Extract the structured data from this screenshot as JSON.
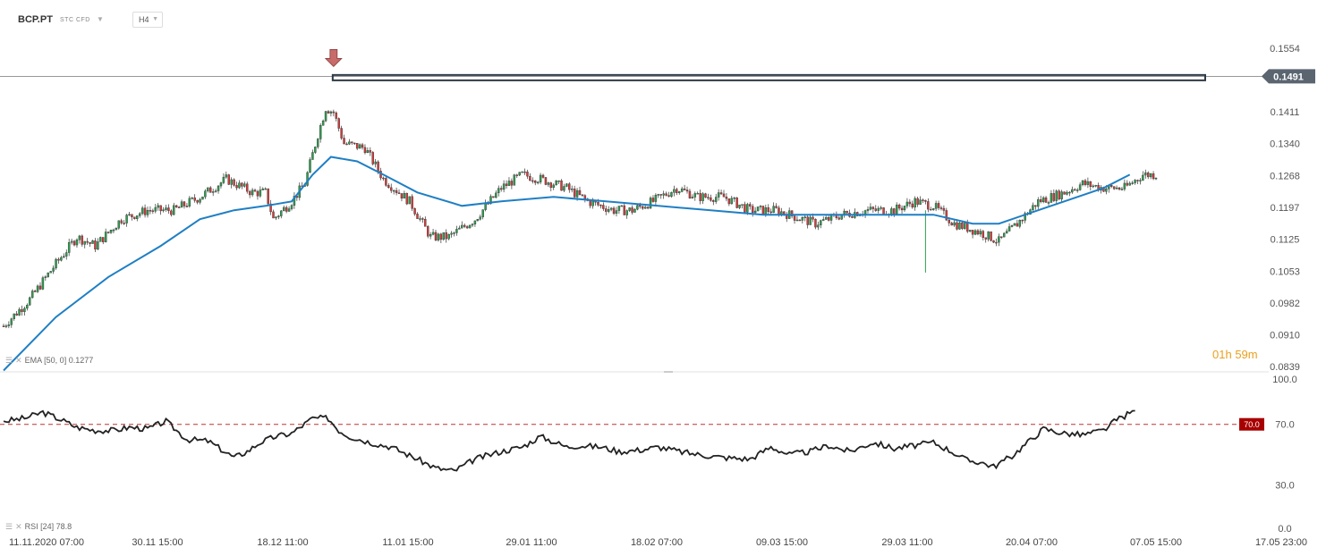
{
  "header": {
    "symbol": "BCP.PT",
    "instrument_type": "STC CFD",
    "timeframe": "H4"
  },
  "colors": {
    "up": "#2e9e4f",
    "down": "#d23b3b",
    "ema": "#1f7fc4",
    "rsi": "#222222",
    "level": "#2d3a45",
    "rsi_overbought": "#a80000",
    "countdown": "#e8a020",
    "marker": "#c86b6b"
  },
  "icons": {
    "indicator_settings": "lines-icon",
    "indicator_close": "close-x-icon",
    "top_marker": "down-arrow-icon",
    "symbol_dropdown": "chevron-down-icon"
  },
  "countdown": {
    "hours": "01h",
    "minutes": "59m"
  },
  "chart_data": [
    {
      "type": "candlestick",
      "title": "",
      "ylim": [
        0.0839,
        0.1554
      ],
      "y_ticks": [
        "0.1554",
        "0.1411",
        "0.1340",
        "0.1268",
        "0.1197",
        "0.1125",
        "0.1053",
        "0.0982",
        "0.0910",
        "0.0839"
      ],
      "current_price": "0.1491",
      "x_tick_labels": [
        "11.11.2020  07:00",
        "30.11  15:00",
        "18.12  11:00",
        "11.01  15:00",
        "29.01  11:00",
        "18.02  07:00",
        "09.03  15:00",
        "29.03  11:00",
        "20.04  07:00",
        "07.05  15:00",
        "17.05  23:00"
      ],
      "close_path": [
        [
          0,
          0.093
        ],
        [
          10,
          0.099
        ],
        [
          20,
          0.107
        ],
        [
          28,
          0.113
        ],
        [
          35,
          0.111
        ],
        [
          45,
          0.117
        ],
        [
          55,
          0.119
        ],
        [
          65,
          0.119
        ],
        [
          75,
          0.122
        ],
        [
          85,
          0.126
        ],
        [
          95,
          0.123
        ],
        [
          100,
          0.123
        ],
        [
          103,
          0.117
        ],
        [
          110,
          0.121
        ],
        [
          115,
          0.125
        ],
        [
          120,
          0.136
        ],
        [
          123,
          0.142
        ],
        [
          126,
          0.141
        ],
        [
          130,
          0.134
        ],
        [
          138,
          0.133
        ],
        [
          145,
          0.126
        ],
        [
          155,
          0.121
        ],
        [
          163,
          0.113
        ],
        [
          170,
          0.113
        ],
        [
          180,
          0.117
        ],
        [
          190,
          0.124
        ],
        [
          198,
          0.127
        ],
        [
          205,
          0.126
        ],
        [
          215,
          0.124
        ],
        [
          223,
          0.121
        ],
        [
          233,
          0.119
        ],
        [
          240,
          0.119
        ],
        [
          248,
          0.121
        ],
        [
          257,
          0.124
        ],
        [
          265,
          0.122
        ],
        [
          275,
          0.122
        ],
        [
          285,
          0.119
        ],
        [
          295,
          0.119
        ],
        [
          300,
          0.118
        ],
        [
          310,
          0.116
        ],
        [
          320,
          0.118
        ],
        [
          330,
          0.119
        ],
        [
          340,
          0.119
        ],
        [
          348,
          0.121
        ],
        [
          355,
          0.12
        ],
        [
          363,
          0.116
        ],
        [
          373,
          0.114
        ],
        [
          380,
          0.112
        ],
        [
          387,
          0.116
        ],
        [
          395,
          0.121
        ],
        [
          405,
          0.123
        ],
        [
          412,
          0.125
        ],
        [
          420,
          0.124
        ],
        [
          428,
          0.124
        ],
        [
          435,
          0.127
        ],
        [
          440,
          0.127
        ]
      ],
      "ema": {
        "period": 50,
        "offset": 0,
        "value": "0.1277",
        "path": [
          [
            0,
            0.083
          ],
          [
            20,
            0.095
          ],
          [
            40,
            0.104
          ],
          [
            60,
            0.111
          ],
          [
            75,
            0.117
          ],
          [
            88,
            0.119
          ],
          [
            100,
            0.12
          ],
          [
            110,
            0.121
          ],
          [
            118,
            0.127
          ],
          [
            125,
            0.131
          ],
          [
            135,
            0.13
          ],
          [
            145,
            0.127
          ],
          [
            158,
            0.123
          ],
          [
            175,
            0.12
          ],
          [
            190,
            0.121
          ],
          [
            210,
            0.122
          ],
          [
            230,
            0.121
          ],
          [
            250,
            0.12
          ],
          [
            270,
            0.119
          ],
          [
            290,
            0.118
          ],
          [
            310,
            0.118
          ],
          [
            330,
            0.118
          ],
          [
            345,
            0.118
          ],
          [
            355,
            0.118
          ],
          [
            370,
            0.116
          ],
          [
            380,
            0.116
          ],
          [
            390,
            0.118
          ],
          [
            405,
            0.121
          ],
          [
            420,
            0.124
          ],
          [
            430,
            0.127
          ]
        ]
      },
      "resistance_level": 0.149,
      "top_marker": {
        "x": 126,
        "y": 0.1525
      },
      "wick_spike": {
        "x": 352,
        "high": 0.119,
        "low": 0.105
      }
    },
    {
      "type": "line",
      "title": "",
      "ylim": [
        0,
        100
      ],
      "y_ticks": [
        "100.0",
        "70.0",
        "30.0",
        "0.0"
      ],
      "overbought": {
        "value": 70,
        "label": "70.0"
      },
      "series": [
        {
          "name": "",
          "period": 24,
          "value": "78.8",
          "values": [
            [
              0,
              72
            ],
            [
              8,
              74
            ],
            [
              15,
              78
            ],
            [
              22,
              73
            ],
            [
              28,
              68
            ],
            [
              35,
              66
            ],
            [
              42,
              66
            ],
            [
              48,
              68
            ],
            [
              55,
              67
            ],
            [
              62,
              72
            ],
            [
              70,
              60
            ],
            [
              78,
              59
            ],
            [
              88,
              48
            ],
            [
              93,
              52
            ],
            [
              98,
              58
            ],
            [
              104,
              62
            ],
            [
              110,
              64
            ],
            [
              118,
              74
            ],
            [
              124,
              74
            ],
            [
              128,
              66
            ],
            [
              132,
              62
            ],
            [
              140,
              58
            ],
            [
              148,
              55
            ],
            [
              158,
              47
            ],
            [
              165,
              41
            ],
            [
              172,
              39
            ],
            [
              180,
              47
            ],
            [
              190,
              52
            ],
            [
              198,
              55
            ],
            [
              205,
              62
            ],
            [
              215,
              55
            ],
            [
              220,
              56
            ],
            [
              228,
              55
            ],
            [
              235,
              52
            ],
            [
              243,
              53
            ],
            [
              250,
              55
            ],
            [
              258,
              52
            ],
            [
              265,
              50
            ],
            [
              275,
              48
            ],
            [
              285,
              47
            ],
            [
              293,
              55
            ],
            [
              300,
              50
            ],
            [
              308,
              52
            ],
            [
              315,
              56
            ],
            [
              323,
              52
            ],
            [
              332,
              58
            ],
            [
              340,
              54
            ],
            [
              348,
              56
            ],
            [
              355,
              58
            ],
            [
              362,
              52
            ],
            [
              368,
              46
            ],
            [
              373,
              45
            ],
            [
              378,
              42
            ],
            [
              385,
              49
            ],
            [
              391,
              58
            ],
            [
              397,
              67
            ],
            [
              405,
              64
            ],
            [
              412,
              63
            ],
            [
              420,
              66
            ],
            [
              425,
              73
            ],
            [
              432,
              79
            ]
          ]
        }
      ]
    }
  ]
}
